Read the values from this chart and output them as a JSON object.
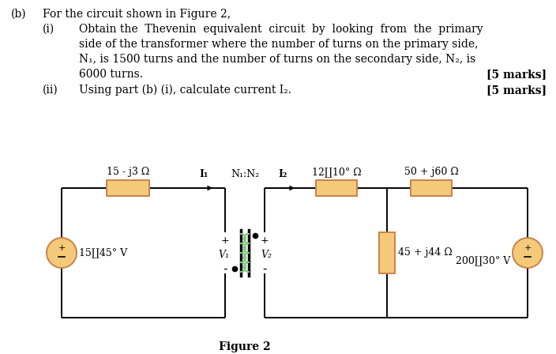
{
  "bg_color": "#ffffff",
  "text_color": "#000000",
  "resistor_fill": "#f5c97a",
  "resistor_edge": "#c8824a",
  "inductor_color": "#7ec87e",
  "voltage_fill": "#f5c97a",
  "voltage_edge": "#c8824a",
  "title": "Figure 2",
  "part_b": "(b)",
  "part_b_text": "For the circuit shown in Figure 2,",
  "sub_i": "(i)",
  "sub_i_text_line1": "Obtain the  Thevenin  equivalent  circuit  by  looking  from  the  primary",
  "sub_i_text_line2": "side of the transformer where the number of turns on the primary side,",
  "sub_i_text_line3": "N₁, is 1500 turns and the number of turns on the secondary side, N₂, is",
  "sub_i_text_line4": "6000 turns.",
  "marks_i": "[5 marks]",
  "sub_ii": "(ii)",
  "sub_ii_text": "Using part (b) (i), calculate current I₂.",
  "marks_ii": "[5 marks]",
  "label_z1": "15 - j3 Ω",
  "label_I1": "I₁",
  "label_N1N2": "N₁:N₂",
  "label_I2": "I₂",
  "label_z2": "12∐10° Ω",
  "label_z3": "50 + j60 Ω",
  "label_V1": "V₁",
  "label_V2": "V₂",
  "label_Vs1": "15∐45° V",
  "label_Zp": "45 + j44 Ω",
  "label_Vs2": "200∐30° V"
}
